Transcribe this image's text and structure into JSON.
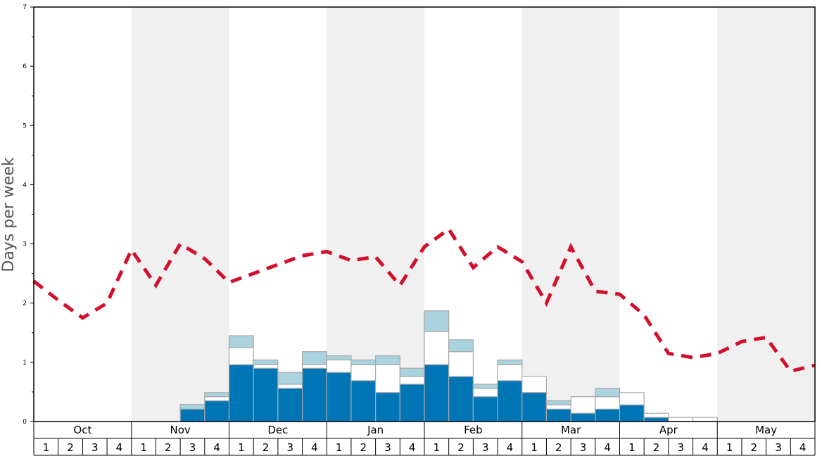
{
  "chart_data": {
    "type": "bar",
    "title": "",
    "xlabel": "",
    "ylabel": "Days per week",
    "ylim": [
      0,
      7
    ],
    "yticks": [
      "0",
      "1",
      "2",
      "3",
      "4",
      "5",
      "6",
      "7"
    ],
    "months": [
      "Oct",
      "Nov",
      "Dec",
      "Jan",
      "Feb",
      "Mar",
      "Apr",
      "May"
    ],
    "weeks_per_month": [
      "1",
      "2",
      "3",
      "4"
    ],
    "colors": {
      "blue": "#0075b6",
      "white": "#ffffff",
      "light": "#abd3df",
      "line": "#d0102c",
      "shade": "#f0f0f0"
    },
    "series": [
      {
        "name": "blue",
        "values": [
          0,
          0,
          0,
          0,
          0,
          0,
          0.21,
          0.35,
          0.96,
          0.9,
          0.56,
          0.9,
          0.83,
          0.69,
          0.49,
          0.63,
          0.96,
          0.76,
          0.42,
          0.69,
          0.49,
          0.21,
          0.14,
          0.21,
          0.28,
          0.07,
          0,
          0,
          0,
          0,
          0,
          0
        ]
      },
      {
        "name": "white",
        "values": [
          0,
          0,
          0,
          0,
          0,
          0,
          0,
          0.07,
          0.29,
          0.06,
          0.07,
          0.06,
          0.21,
          0.27,
          0.47,
          0.13,
          0.56,
          0.42,
          0.14,
          0.27,
          0.27,
          0.07,
          0.28,
          0.21,
          0.21,
          0.07,
          0.07,
          0.07,
          0,
          0,
          0,
          0
        ]
      },
      {
        "name": "light",
        "values": [
          0,
          0,
          0,
          0,
          0,
          0,
          0.08,
          0.07,
          0.2,
          0.08,
          0.2,
          0.22,
          0.07,
          0.08,
          0.15,
          0.14,
          0.35,
          0.2,
          0.07,
          0.08,
          0,
          0.07,
          0,
          0.14,
          0,
          0,
          0,
          0,
          0,
          0,
          0,
          0
        ]
      }
    ],
    "line": {
      "name": "average",
      "values": [
        2.37,
        2.05,
        1.75,
        2.0,
        2.9,
        2.3,
        3.0,
        2.75,
        2.35,
        2.5,
        2.65,
        2.8,
        2.87,
        2.72,
        2.78,
        2.3,
        2.95,
        3.25,
        2.6,
        2.95,
        2.7,
        2.0,
        2.95,
        2.2,
        2.15,
        1.8,
        1.15,
        1.08,
        1.15,
        1.35,
        1.42,
        0.85,
        0.95
      ]
    }
  }
}
